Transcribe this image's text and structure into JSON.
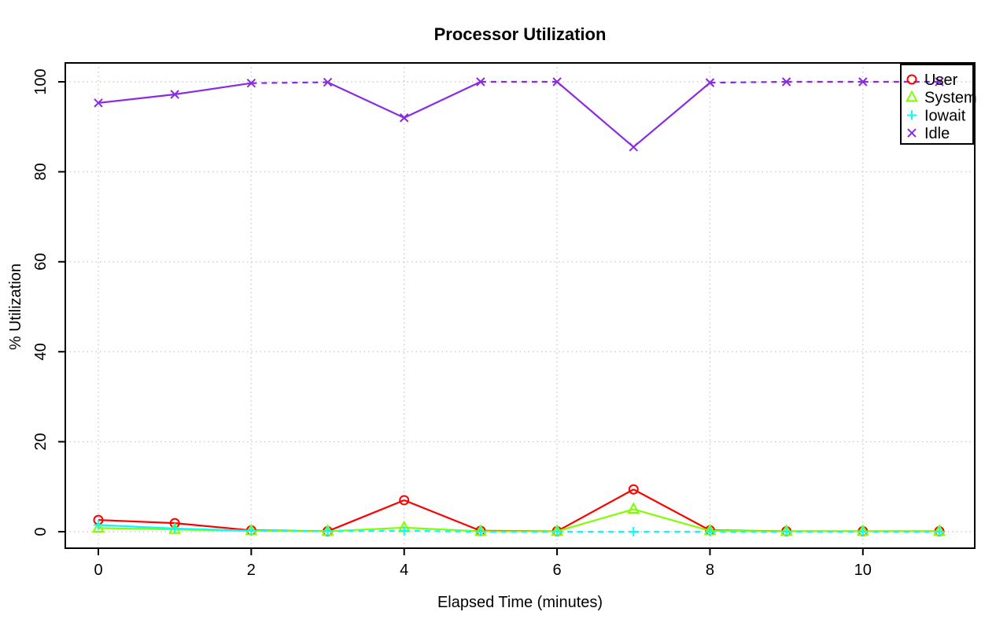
{
  "figure": {
    "background": "#ffffff",
    "grid_color": "#cccccc",
    "axis_color": "#000000"
  },
  "chart_data": {
    "type": "line",
    "title": "Processor Utilization",
    "xlabel": "Elapsed Time (minutes)",
    "ylabel": "% Utilization",
    "x": [
      0,
      1,
      2,
      3,
      4,
      5,
      6,
      7,
      8,
      9,
      10,
      11
    ],
    "xticks": [
      0,
      2,
      4,
      6,
      8,
      10
    ],
    "yticks": [
      0,
      20,
      40,
      60,
      80,
      100
    ],
    "xlim": [
      -0.45,
      11.45
    ],
    "ylim": [
      -3.7,
      104.2
    ],
    "grid": "dotted",
    "legend_position": "top-right",
    "series": [
      {
        "name": "User",
        "color": "#FF0000",
        "marker": "circle",
        "dashed_flat": false,
        "values": [
          2.6,
          1.9,
          0.3,
          0.1,
          7.0,
          0.2,
          0.1,
          9.4,
          0.3,
          0.1,
          0.1,
          0.1
        ]
      },
      {
        "name": "System",
        "color": "#80FF00",
        "marker": "triangle",
        "dashed_flat": false,
        "values": [
          0.8,
          0.5,
          0.2,
          0.1,
          0.9,
          0.1,
          0.1,
          5.0,
          0.2,
          0.1,
          0.1,
          0.1
        ]
      },
      {
        "name": "Iowait",
        "color": "#00FFFF",
        "marker": "plus",
        "dashed_flat": true,
        "values": [
          1.5,
          0.7,
          0.2,
          0.1,
          0.2,
          0.0,
          0.0,
          0.0,
          0.0,
          0.0,
          0.0,
          0.0
        ]
      },
      {
        "name": "Idle",
        "color": "#8A2BE2",
        "marker": "x",
        "dashed_flat": true,
        "values": [
          95.3,
          97.2,
          99.7,
          99.9,
          92.0,
          100,
          100,
          85.5,
          99.8,
          100,
          100,
          100
        ]
      }
    ]
  }
}
